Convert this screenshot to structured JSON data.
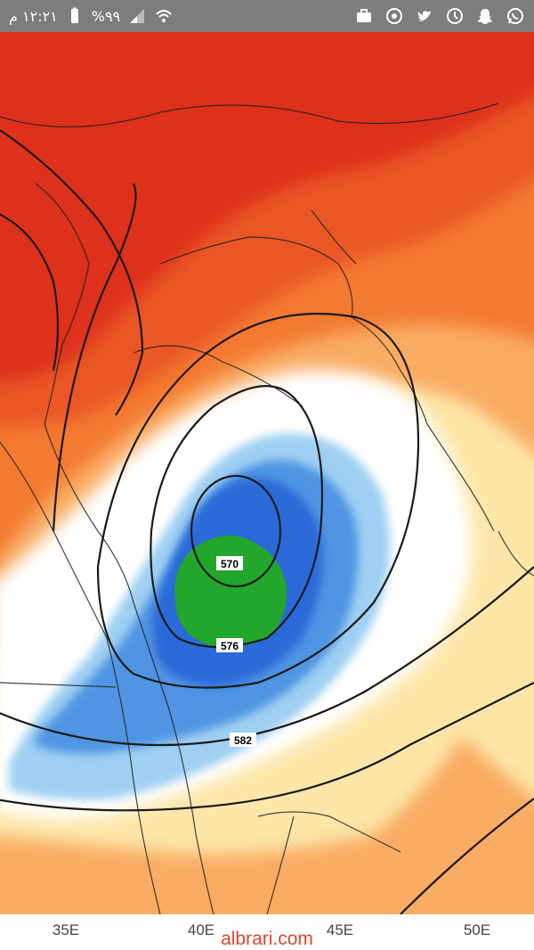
{
  "status_bar": {
    "time": "١٢:٢١ م",
    "battery": "%٩٩",
    "icons": [
      "whatsapp-icon",
      "snapchat-icon",
      "sync-icon",
      "twitter-icon",
      "shield-app-icon",
      "briefcase-icon",
      "wifi-icon",
      "signal-icon",
      "battery-icon"
    ]
  },
  "map": {
    "x_axis_ticks": [
      "35E",
      "40E",
      "45E",
      "50E"
    ],
    "contour_labels": [
      "570",
      "576",
      "582"
    ],
    "colors": {
      "deep_red": "#d8271a",
      "red_orange": "#ee4a1c",
      "orange": "#f47a32",
      "light_orange": "#f9ac64",
      "pale_yellow": "#fde6a8",
      "white": "#ffffff",
      "light_blue": "#9fd0f3",
      "mid_blue": "#4f95e3",
      "deep_blue": "#2c6ad8",
      "green": "#22a62c",
      "contour": "#1a1a1a"
    }
  },
  "watermark": "albrari.com"
}
